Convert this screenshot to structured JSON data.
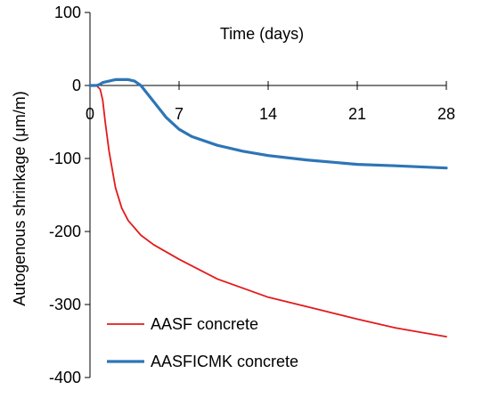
{
  "chart_data": {
    "type": "line",
    "title": "",
    "xlabel": "Time (days)",
    "ylabel": "Autogenous shrinkage (μm/m)",
    "xlim": [
      0,
      28
    ],
    "ylim": [
      -400,
      100
    ],
    "x_ticks": [
      0,
      7,
      14,
      21,
      28
    ],
    "y_ticks": [
      100,
      0,
      -100,
      -200,
      -300,
      -400
    ],
    "x_tick_labels": [
      "0",
      "7",
      "14",
      "21",
      "28"
    ],
    "y_tick_labels": [
      "100",
      "0",
      "-100",
      "-200",
      "-300",
      "-400"
    ],
    "grid": false,
    "legend_position": "bottom-left",
    "series": [
      {
        "name": "AASF concrete",
        "color": "#e31a1c",
        "x": [
          0,
          0.5,
          0.8,
          1.0,
          1.2,
          1.5,
          2.0,
          2.5,
          3.0,
          4.0,
          5.0,
          7.0,
          10.0,
          14.0,
          18.0,
          21.0,
          24.0,
          26.0,
          28.0
        ],
        "y": [
          0,
          0,
          -5,
          -20,
          -50,
          -90,
          -140,
          -168,
          -185,
          -205,
          -218,
          -238,
          -265,
          -290,
          -307,
          -320,
          -332,
          -338,
          -344
        ]
      },
      {
        "name": "AASFICMK concrete",
        "color": "#2e75b6",
        "x": [
          0,
          0.5,
          0.7,
          1.0,
          1.5,
          2.0,
          3.0,
          3.5,
          4.0,
          5.0,
          6.0,
          7.0,
          8.0,
          10.0,
          12.0,
          14.0,
          17.0,
          21.0,
          24.0,
          28.0
        ],
        "y": [
          0,
          0,
          1,
          4,
          6,
          8,
          8,
          6,
          0,
          -22,
          -44,
          -60,
          -70,
          -82,
          -90,
          -96,
          -102,
          -108,
          -110,
          -113
        ]
      }
    ]
  }
}
